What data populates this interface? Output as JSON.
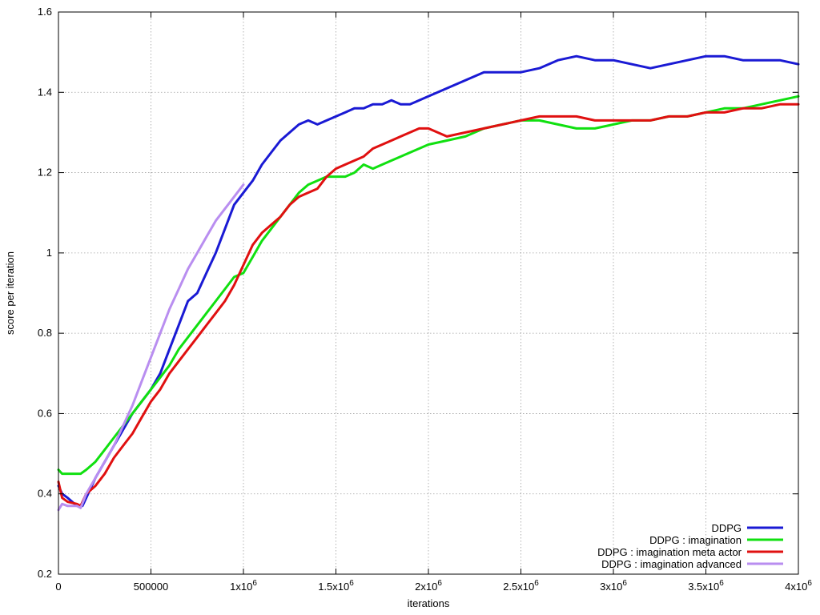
{
  "chart_data": {
    "type": "line",
    "title": "",
    "xlabel": "iterations",
    "ylabel": "score per iteration",
    "xlim": [
      0,
      4000000
    ],
    "ylim": [
      0.2,
      1.6
    ],
    "grid": true,
    "legend_position": "bottom-right",
    "x_ticks": [
      {
        "value": 0,
        "base": "0",
        "exp": ""
      },
      {
        "value": 500000,
        "base": "500000",
        "exp": ""
      },
      {
        "value": 1000000,
        "base": "1x10",
        "exp": "6"
      },
      {
        "value": 1500000,
        "base": "1.5x10",
        "exp": "6"
      },
      {
        "value": 2000000,
        "base": "2x10",
        "exp": "6"
      },
      {
        "value": 2500000,
        "base": "2.5x10",
        "exp": "6"
      },
      {
        "value": 3000000,
        "base": "3x10",
        "exp": "6"
      },
      {
        "value": 3500000,
        "base": "3.5x10",
        "exp": "6"
      },
      {
        "value": 4000000,
        "base": "4x10",
        "exp": "6"
      }
    ],
    "y_ticks": [
      {
        "value": 0.2,
        "label": "0.2"
      },
      {
        "value": 0.4,
        "label": "0.4"
      },
      {
        "value": 0.6,
        "label": "0.6"
      },
      {
        "value": 0.8,
        "label": "0.8"
      },
      {
        "value": 1.0,
        "label": "1"
      },
      {
        "value": 1.2,
        "label": "1.2"
      },
      {
        "value": 1.4,
        "label": "1.4"
      },
      {
        "value": 1.6,
        "label": "1.6"
      }
    ],
    "series": [
      {
        "name": "DDPG",
        "color": "#1a1ad4",
        "x": [
          0,
          20000,
          50000,
          100000,
          130000,
          150000,
          200000,
          250000,
          300000,
          350000,
          400000,
          450000,
          500000,
          550000,
          600000,
          650000,
          700000,
          750000,
          800000,
          850000,
          900000,
          950000,
          1000000,
          1050000,
          1100000,
          1150000,
          1200000,
          1250000,
          1300000,
          1350000,
          1400000,
          1450000,
          1500000,
          1550000,
          1600000,
          1650000,
          1700000,
          1750000,
          1800000,
          1850000,
          1900000,
          1950000,
          2000000,
          2100000,
          2200000,
          2300000,
          2400000,
          2500000,
          2600000,
          2700000,
          2800000,
          2900000,
          3000000,
          3100000,
          3200000,
          3300000,
          3400000,
          3500000,
          3600000,
          3700000,
          3800000,
          3900000,
          4000000
        ],
        "y": [
          0.42,
          0.4,
          0.39,
          0.37,
          0.37,
          0.39,
          0.44,
          0.48,
          0.52,
          0.56,
          0.6,
          0.63,
          0.66,
          0.7,
          0.76,
          0.82,
          0.88,
          0.9,
          0.95,
          1.0,
          1.06,
          1.12,
          1.15,
          1.18,
          1.22,
          1.25,
          1.28,
          1.3,
          1.32,
          1.33,
          1.32,
          1.33,
          1.34,
          1.35,
          1.36,
          1.36,
          1.37,
          1.37,
          1.38,
          1.37,
          1.37,
          1.38,
          1.39,
          1.41,
          1.43,
          1.45,
          1.45,
          1.45,
          1.46,
          1.48,
          1.49,
          1.48,
          1.48,
          1.47,
          1.46,
          1.47,
          1.48,
          1.49,
          1.49,
          1.48,
          1.48,
          1.48,
          1.47
        ]
      },
      {
        "name": "DDPG : imagination",
        "color": "#10e010",
        "x": [
          0,
          20000,
          50000,
          100000,
          120000,
          150000,
          200000,
          250000,
          300000,
          350000,
          400000,
          450000,
          500000,
          550000,
          600000,
          650000,
          700000,
          750000,
          800000,
          850000,
          900000,
          950000,
          1000000,
          1050000,
          1100000,
          1150000,
          1200000,
          1250000,
          1300000,
          1350000,
          1400000,
          1450000,
          1500000,
          1550000,
          1600000,
          1650000,
          1700000,
          1750000,
          1800000,
          1850000,
          1900000,
          1950000,
          2000000,
          2100000,
          2200000,
          2300000,
          2400000,
          2500000,
          2600000,
          2700000,
          2800000,
          2900000,
          3000000,
          3100000,
          3200000,
          3300000,
          3400000,
          3500000,
          3600000,
          3700000,
          3800000,
          3900000,
          4000000
        ],
        "y": [
          0.46,
          0.45,
          0.45,
          0.45,
          0.45,
          0.46,
          0.48,
          0.51,
          0.54,
          0.57,
          0.6,
          0.63,
          0.66,
          0.69,
          0.72,
          0.76,
          0.79,
          0.82,
          0.85,
          0.88,
          0.91,
          0.94,
          0.95,
          0.99,
          1.03,
          1.06,
          1.09,
          1.12,
          1.15,
          1.17,
          1.18,
          1.19,
          1.19,
          1.19,
          1.2,
          1.22,
          1.21,
          1.22,
          1.23,
          1.24,
          1.25,
          1.26,
          1.27,
          1.28,
          1.29,
          1.31,
          1.32,
          1.33,
          1.33,
          1.32,
          1.31,
          1.31,
          1.32,
          1.33,
          1.33,
          1.34,
          1.34,
          1.35,
          1.36,
          1.36,
          1.37,
          1.38,
          1.39
        ]
      },
      {
        "name": "DDPG : imagination meta actor",
        "color": "#e01010",
        "x": [
          0,
          20000,
          50000,
          100000,
          120000,
          150000,
          200000,
          250000,
          300000,
          350000,
          400000,
          450000,
          500000,
          550000,
          600000,
          650000,
          700000,
          750000,
          800000,
          850000,
          900000,
          950000,
          1000000,
          1050000,
          1100000,
          1150000,
          1200000,
          1250000,
          1300000,
          1350000,
          1400000,
          1450000,
          1500000,
          1550000,
          1600000,
          1650000,
          1700000,
          1750000,
          1800000,
          1850000,
          1900000,
          1950000,
          2000000,
          2100000,
          2200000,
          2300000,
          2400000,
          2500000,
          2600000,
          2700000,
          2800000,
          2900000,
          3000000,
          3100000,
          3200000,
          3300000,
          3400000,
          3500000,
          3600000,
          3700000,
          3800000,
          3900000,
          4000000
        ],
        "y": [
          0.43,
          0.39,
          0.38,
          0.375,
          0.37,
          0.4,
          0.42,
          0.45,
          0.49,
          0.52,
          0.55,
          0.59,
          0.63,
          0.66,
          0.7,
          0.73,
          0.76,
          0.79,
          0.82,
          0.85,
          0.88,
          0.92,
          0.97,
          1.02,
          1.05,
          1.07,
          1.09,
          1.12,
          1.14,
          1.15,
          1.16,
          1.19,
          1.21,
          1.22,
          1.23,
          1.24,
          1.26,
          1.27,
          1.28,
          1.29,
          1.3,
          1.31,
          1.31,
          1.29,
          1.3,
          1.31,
          1.32,
          1.33,
          1.34,
          1.34,
          1.34,
          1.33,
          1.33,
          1.33,
          1.33,
          1.34,
          1.34,
          1.35,
          1.35,
          1.36,
          1.36,
          1.37,
          1.37
        ]
      },
      {
        "name": "DDPG : imagination advanced",
        "color": "#b98ef0",
        "x": [
          0,
          20000,
          50000,
          100000,
          120000,
          150000,
          200000,
          250000,
          300000,
          350000,
          400000,
          450000,
          500000,
          550000,
          600000,
          650000,
          700000,
          750000,
          800000,
          850000,
          900000,
          950000,
          1000000
        ],
        "y": [
          0.36,
          0.375,
          0.37,
          0.37,
          0.365,
          0.4,
          0.44,
          0.48,
          0.52,
          0.57,
          0.62,
          0.68,
          0.74,
          0.8,
          0.86,
          0.91,
          0.96,
          1.0,
          1.04,
          1.08,
          1.11,
          1.14,
          1.17
        ]
      }
    ]
  }
}
